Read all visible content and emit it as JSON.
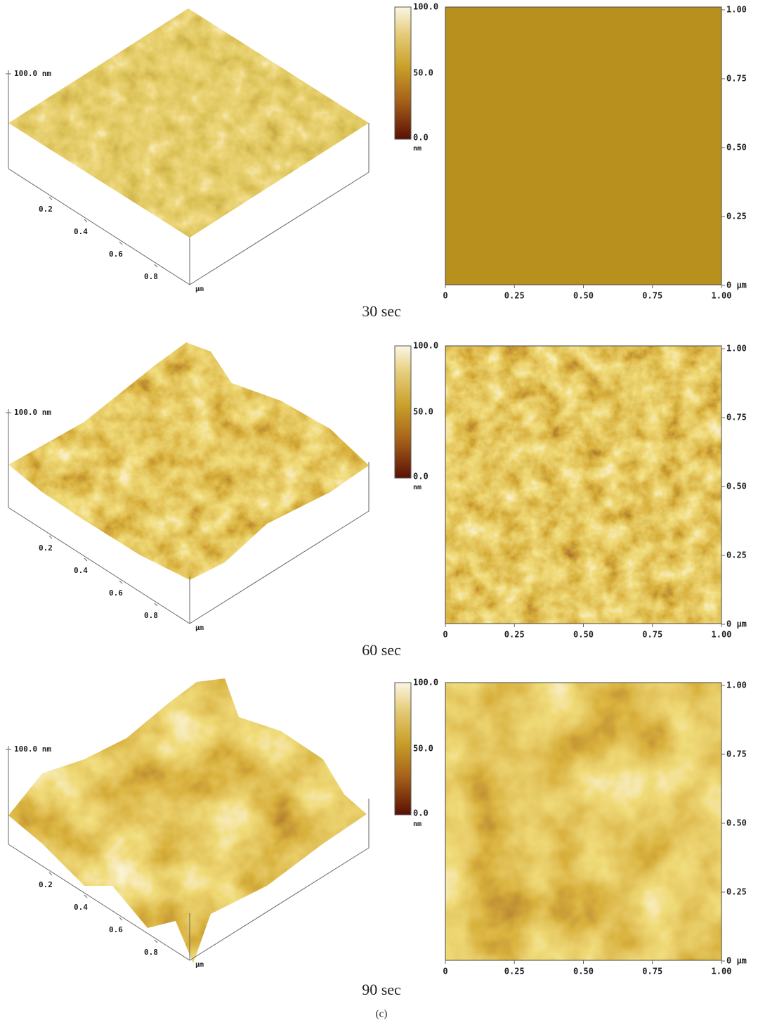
{
  "rows": [
    {
      "caption": "30 sec",
      "view3d": {
        "z_label": "100.0 nm",
        "axis_ticks": [
          "0.2",
          "0.4",
          "0.6",
          "0.8"
        ],
        "axis_unit": "µm"
      },
      "colorbar": {
        "ticks": [
          "100.0",
          "50.0",
          "0.0"
        ],
        "unit": "nm"
      },
      "image2d": {
        "x_ticks": [
          "0",
          "0.25",
          "0.50",
          "0.75",
          "1.00"
        ],
        "y_ticks": [
          "1.00",
          "0.75",
          "0.50",
          "0.25",
          "0 µm"
        ]
      }
    },
    {
      "caption": "60 sec",
      "view3d": {
        "z_label": "100.0 nm",
        "axis_ticks": [
          "0.2",
          "0.4",
          "0.6",
          "0.8"
        ],
        "axis_unit": "µm"
      },
      "colorbar": {
        "ticks": [
          "100.0",
          "50.0",
          "0.0"
        ],
        "unit": "nm"
      },
      "image2d": {
        "x_ticks": [
          "0",
          "0.25",
          "0.50",
          "0.75",
          "1.00"
        ],
        "y_ticks": [
          "1.00",
          "0.75",
          "0.50",
          "0.25",
          "0 µm"
        ]
      }
    },
    {
      "caption": "90 sec",
      "view3d": {
        "z_label": "100.0 nm",
        "axis_ticks": [
          "0.2",
          "0.4",
          "0.6",
          "0.8"
        ],
        "axis_unit": "µm"
      },
      "colorbar": {
        "ticks": [
          "100.0",
          "50.0",
          "0.0"
        ],
        "unit": "nm"
      },
      "image2d": {
        "x_ticks": [
          "0",
          "0.25",
          "0.50",
          "0.75",
          "1.00"
        ],
        "y_ticks": [
          "1.00",
          "0.75",
          "0.50",
          "0.25",
          "0 µm"
        ]
      }
    }
  ],
  "figure_label": "(c)"
}
